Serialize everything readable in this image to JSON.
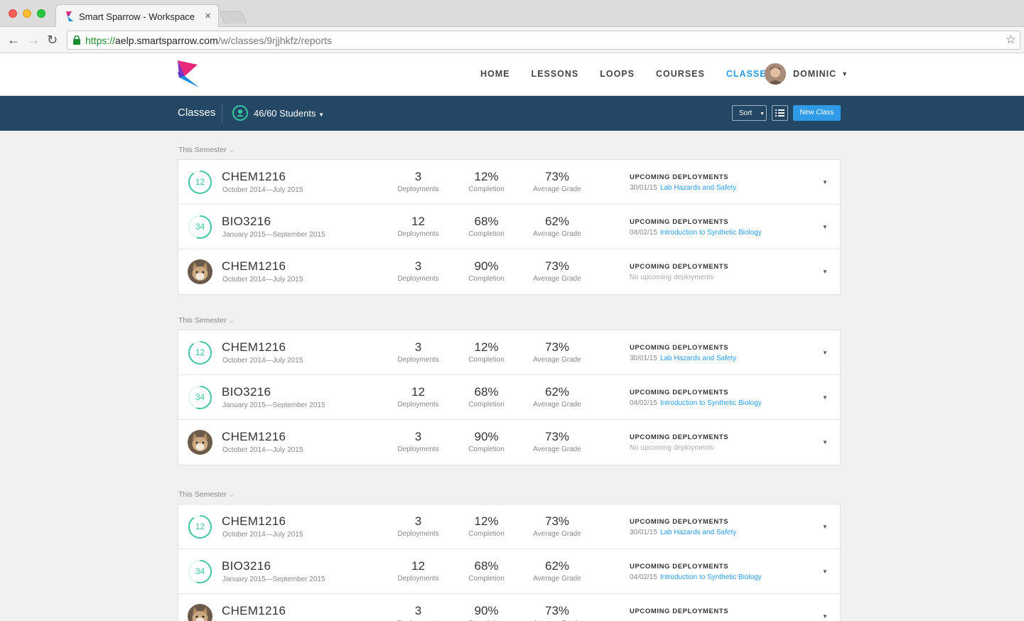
{
  "browser": {
    "tab_title": "Smart Sparrow - Workspace",
    "tab_close": "×",
    "url_scheme": "https://",
    "url_host": "aelp.smartsparrow.com",
    "url_path": "/w/classes/9rjjhkfz/reports"
  },
  "header": {
    "nav": [
      "HOME",
      "LESSONS",
      "LOOPS",
      "COURSES",
      "CLASSES"
    ],
    "active_nav": "CLASSES",
    "user_name": "DOMINIC",
    "accent_color": "#2b9be6"
  },
  "subbar": {
    "title": "Classes",
    "students": "46/60 Students",
    "sort_label": "Sort",
    "new_class_label": "New Class",
    "background": "#244766"
  },
  "groups": [
    {
      "label": "This Semester",
      "rows": [
        {
          "badge_type": "ring",
          "badge": "12",
          "code": "CHEM1216",
          "dates": "October 2014—July 2015",
          "deployments": "3",
          "completion": "12%",
          "grade": "73%",
          "up_title": "UPCOMING DEPLOYMENTS",
          "up_date": "30/01/15",
          "up_link": "Lab Hazards and Safety",
          "ring_fill": 0.9
        },
        {
          "badge_type": "ring",
          "badge": "34",
          "code": "BIO3216",
          "dates": "January 2015—September 2015",
          "deployments": "12",
          "completion": "68%",
          "grade": "62%",
          "up_title": "UPCOMING DEPLOYMENTS",
          "up_date": "04/02/15",
          "up_link": "Introduction to Synthetic Biology",
          "ring_fill": 0.55
        },
        {
          "badge_type": "avatar",
          "badge": "",
          "code": "CHEM1216",
          "dates": "October 2014—July 2015",
          "deployments": "3",
          "completion": "90%",
          "grade": "73%",
          "up_title": "UPCOMING DEPLOYMENTS",
          "up_date": "No upcoming deployments",
          "up_link": "",
          "ring_fill": 0
        }
      ]
    },
    {
      "label": "This Semester",
      "rows": [
        {
          "badge_type": "ring",
          "badge": "12",
          "code": "CHEM1216",
          "dates": "October 2014—July 2015",
          "deployments": "3",
          "completion": "12%",
          "grade": "73%",
          "up_title": "UPCOMING DEPLOYMENTS",
          "up_date": "30/01/15",
          "up_link": "Lab Hazards and Safety",
          "ring_fill": 0.9
        },
        {
          "badge_type": "ring",
          "badge": "34",
          "code": "BIO3216",
          "dates": "January 2015—September 2015",
          "deployments": "12",
          "completion": "68%",
          "grade": "62%",
          "up_title": "UPCOMING DEPLOYMENTS",
          "up_date": "04/02/15",
          "up_link": "Introduction to Synthetic Biology",
          "ring_fill": 0.55
        },
        {
          "badge_type": "avatar",
          "badge": "",
          "code": "CHEM1216",
          "dates": "October 2014—July 2015",
          "deployments": "3",
          "completion": "90%",
          "grade": "73%",
          "up_title": "UPCOMING DEPLOYMENTS",
          "up_date": "No upcoming deployments",
          "up_link": "",
          "ring_fill": 0
        }
      ]
    },
    {
      "label": "This Semester",
      "rows": [
        {
          "badge_type": "ring",
          "badge": "12",
          "code": "CHEM1216",
          "dates": "October 2014—July 2015",
          "deployments": "3",
          "completion": "12%",
          "grade": "73%",
          "up_title": "UPCOMING DEPLOYMENTS",
          "up_date": "30/01/15",
          "up_link": "Lab Hazards and Safety",
          "ring_fill": 0.9
        },
        {
          "badge_type": "ring",
          "badge": "34",
          "code": "BIO3216",
          "dates": "January 2015—September 2015",
          "deployments": "12",
          "completion": "68%",
          "grade": "62%",
          "up_title": "UPCOMING DEPLOYMENTS",
          "up_date": "04/02/15",
          "up_link": "Introduction to Synthetic Biology",
          "ring_fill": 0.55
        },
        {
          "badge_type": "avatar",
          "badge": "",
          "code": "CHEM1216",
          "dates": "",
          "deployments": "3",
          "completion": "90%",
          "grade": "73%",
          "up_title": "UPCOMING DEPLOYMENTS",
          "up_date": "",
          "up_link": "",
          "ring_fill": 0
        }
      ]
    }
  ],
  "labels": {
    "deployments": "Deployments",
    "completion": "Completion",
    "grade": "Average Grade"
  }
}
